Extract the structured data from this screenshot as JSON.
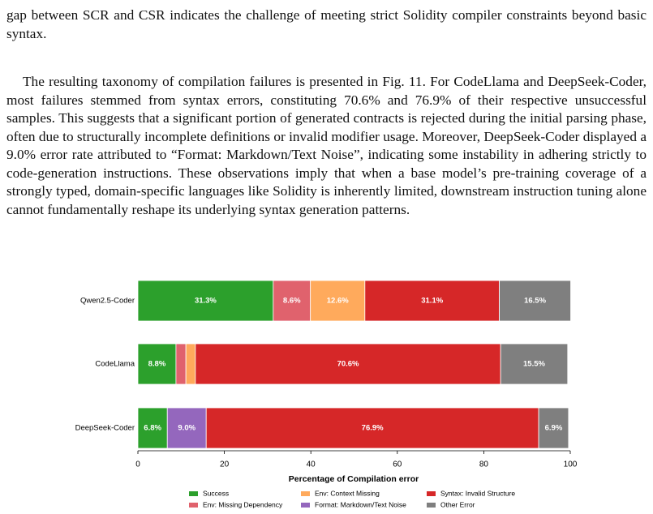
{
  "paragraphs": [
    "gap between SCR and CSR indicates the challenge of meeting strict Solidity compiler constraints beyond basic syntax.",
    "The resulting taxonomy of compilation failures is presented in Fig. 11. For CodeLlama and DeepSeek-Coder, most failures stemmed from syntax errors, constituting 70.6% and 76.9% of their respective unsuccessful samples. This suggests that a significant portion of generated contracts is rejected during the initial parsing phase, often due to structurally incomplete definitions or invalid modifier usage. Moreover, DeepSeek-Coder displayed a 9.0% error rate attributed to “Format: Markdown/Text Noise”, indicating some instability in adhering strictly to code-generation instructions. These observations imply that when a base model’s pre-training coverage of a strongly typed, domain-specific languages like Solidity is inherently limited, downstream instruction tuning alone cannot fundamentally reshape its underlying syntax generation patterns."
  ],
  "chart_data": {
    "type": "stacked-barh",
    "xlabel": "Percentage of Compilation error",
    "categories": [
      "Qwen2.5-Coder",
      "CodeLlama",
      "DeepSeek-Coder"
    ],
    "xlim": [
      0,
      100
    ],
    "xticks": [
      0,
      20,
      40,
      60,
      80,
      100
    ],
    "series": [
      {
        "name": "Success",
        "color": "#2ca02c",
        "values": [
          31.3,
          8.8,
          6.8
        ],
        "value_labels": [
          "31.3%",
          "8.8%",
          "6.8%"
        ]
      },
      {
        "name": "Env: Missing Dependency",
        "color": "#e0626d",
        "values": [
          8.6,
          2.3,
          0
        ],
        "value_labels": [
          "8.6%",
          null,
          null
        ]
      },
      {
        "name": "Env: Context Missing",
        "color": "#ffaa5c",
        "values": [
          12.6,
          2.2,
          0
        ],
        "value_labels": [
          "12.6%",
          null,
          null
        ]
      },
      {
        "name": "Format: Markdown/Text Noise",
        "color": "#9467bd",
        "values": [
          0,
          0,
          9.0
        ],
        "value_labels": [
          null,
          null,
          "9.0%"
        ]
      },
      {
        "name": "Syntax: Invalid Structure",
        "color": "#d62728",
        "values": [
          31.1,
          70.6,
          76.9
        ],
        "value_labels": [
          "31.1%",
          "70.6%",
          "76.9%"
        ]
      },
      {
        "name": "Other Error",
        "color": "#7f7f7f",
        "values": [
          16.5,
          15.5,
          6.9
        ],
        "value_labels": [
          "16.5%",
          "15.5%",
          "6.9%"
        ]
      }
    ]
  }
}
